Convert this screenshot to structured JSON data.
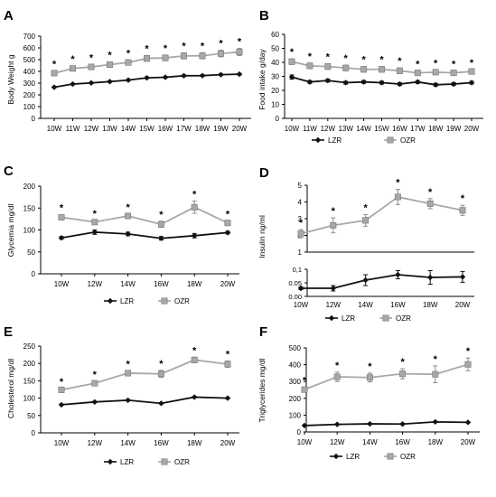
{
  "colors": {
    "lzr": "#111111",
    "ozr": "#a8a8a8",
    "ozr_err": "#8c8c8c",
    "axis": "#000000"
  },
  "chart_data": [
    {
      "type": "line",
      "panel_letter": "A",
      "ylabel": "Body Weight g",
      "xlabel": "",
      "categories": [
        "10W",
        "11W",
        "12W",
        "13W",
        "14W",
        "15W",
        "16W",
        "17W",
        "18W",
        "19W",
        "20W"
      ],
      "ylim": [
        0,
        700
      ],
      "yticks": [
        "0",
        "100",
        "200",
        "300",
        "400",
        "500",
        "600",
        "700"
      ],
      "series": [
        {
          "name": "LZR",
          "values": [
            265,
            292,
            302,
            313,
            326,
            345,
            350,
            363,
            364,
            372,
            376
          ],
          "errors": [
            6,
            6,
            6,
            6,
            6,
            7,
            7,
            7,
            7,
            7,
            7
          ]
        },
        {
          "name": "OZR",
          "values": [
            385,
            425,
            438,
            458,
            476,
            510,
            515,
            532,
            533,
            552,
            565
          ],
          "errors": [
            18,
            20,
            20,
            22,
            22,
            24,
            24,
            25,
            26,
            28,
            30
          ]
        }
      ],
      "annotations": [
        "*",
        "*",
        "*",
        "*",
        "*",
        "*",
        "*",
        "*",
        "*",
        "*",
        "*"
      ],
      "legend": {
        "show": false,
        "labels": []
      }
    },
    {
      "type": "line",
      "panel_letter": "B",
      "ylabel": "Food intake g/day",
      "xlabel": "",
      "categories": [
        "10W",
        "11W",
        "12W",
        "13W",
        "14W",
        "15W",
        "16W",
        "17W",
        "18W",
        "19W",
        "20W"
      ],
      "ylim": [
        0,
        60
      ],
      "yticks": [
        "0",
        "10",
        "20",
        "30",
        "40",
        "50",
        "60"
      ],
      "series": [
        {
          "name": "LZR",
          "values": [
            29.5,
            26,
            27,
            25.5,
            26,
            25.5,
            24.5,
            26,
            24,
            24.5,
            25.5
          ],
          "errors": [
            1.5,
            1,
            1,
            1,
            1,
            1,
            1,
            1,
            1,
            1,
            1
          ]
        },
        {
          "name": "OZR",
          "values": [
            40.5,
            37.5,
            37,
            36,
            35,
            35,
            34,
            32.5,
            33,
            32.5,
            33.5
          ],
          "errors": [
            2,
            2,
            2,
            2,
            2,
            2,
            2,
            1.5,
            1.5,
            1.5,
            1.5
          ]
        }
      ],
      "annotations": [
        "*",
        "*",
        "*",
        "*",
        "*",
        "*",
        "*",
        "*",
        "*",
        "*",
        "*"
      ],
      "legend": {
        "show": true,
        "labels": [
          "LZR",
          "OZR"
        ]
      }
    },
    {
      "type": "line",
      "panel_letter": "C",
      "ylabel": "Glycemia mg/dl",
      "xlabel": "",
      "categories": [
        "10W",
        "12W",
        "14W",
        "16W",
        "18W",
        "20W"
      ],
      "ylim": [
        0,
        200
      ],
      "yticks": [
        "0",
        "50",
        "100",
        "150",
        "200"
      ],
      "series": [
        {
          "name": "LZR",
          "values": [
            82,
            95,
            91,
            81,
            87,
            94
          ],
          "errors": [
            3,
            5,
            4,
            4,
            5,
            3
          ]
        },
        {
          "name": "OZR",
          "values": [
            129,
            118,
            132,
            113,
            152,
            116
          ],
          "errors": [
            6,
            4,
            4,
            7,
            14,
            5
          ]
        }
      ],
      "annotations": [
        "*",
        "*",
        "*",
        "*",
        "*",
        "*"
      ],
      "legend": {
        "show": true,
        "labels": [
          "LZR",
          "OZR"
        ]
      }
    },
    {
      "type": "line",
      "panel_letter": "D",
      "ylabel": "Insulin ng/ml",
      "xlabel": "",
      "categories": [
        "10W",
        "12W",
        "14W",
        "16W",
        "18W",
        "20W"
      ],
      "upper": {
        "ylim": [
          1,
          5
        ],
        "yticks": [
          "1",
          "2",
          "3",
          "4",
          "5"
        ],
        "series": [
          {
            "name": "OZR",
            "values": [
              2.1,
              2.6,
              2.9,
              4.3,
              3.9,
              3.5
            ],
            "errors": [
              0.25,
              0.45,
              0.35,
              0.45,
              0.3,
              0.3
            ]
          }
        ]
      },
      "lower": {
        "ylim": [
          0,
          0.1
        ],
        "yticks": [
          "0.00",
          "0.05",
          "0,1"
        ],
        "series": [
          {
            "name": "LZR",
            "values": [
              0.03,
              0.03,
              0.06,
              0.08,
              0.07,
              0.072
            ],
            "errors": [
              0.005,
              0.01,
              0.02,
              0.015,
              0.025,
              0.02
            ]
          }
        ]
      },
      "annotations": [
        "*",
        "*",
        "*",
        "*",
        "*",
        "*"
      ],
      "legend": {
        "show": true,
        "labels": [
          "LZR",
          "OZR"
        ]
      }
    },
    {
      "type": "line",
      "panel_letter": "E",
      "ylabel": "Cholesterol mg/dl",
      "xlabel": "",
      "categories": [
        "10W",
        "12W",
        "14W",
        "16W",
        "18W",
        "20W"
      ],
      "ylim": [
        0,
        250
      ],
      "yticks": [
        "0",
        "50",
        "100",
        "150",
        "200",
        "250"
      ],
      "series": [
        {
          "name": "LZR",
          "values": [
            81,
            89,
            94,
            85,
            103,
            100
          ],
          "errors": [
            2,
            2,
            2,
            2,
            2,
            2
          ]
        },
        {
          "name": "OZR",
          "values": [
            124,
            143,
            172,
            170,
            210,
            198
          ],
          "errors": [
            4,
            5,
            6,
            10,
            8,
            9
          ]
        }
      ],
      "annotations": [
        "*",
        "*",
        "*",
        "*",
        "*",
        "*"
      ],
      "legend": {
        "show": true,
        "labels": [
          "LZR",
          "OZR"
        ]
      }
    },
    {
      "type": "line",
      "panel_letter": "F",
      "ylabel": "Triglycerides mg/dl",
      "xlabel": "",
      "categories": [
        "10W",
        "12W",
        "14W",
        "16W",
        "18W",
        "20W"
      ],
      "ylim": [
        0,
        500
      ],
      "yticks": [
        "0",
        "100",
        "200",
        "300",
        "400",
        "500"
      ],
      "series": [
        {
          "name": "LZR",
          "values": [
            38,
            45,
            48,
            47,
            60,
            57
          ],
          "errors": [
            3,
            3,
            3,
            3,
            3,
            3
          ]
        },
        {
          "name": "OZR",
          "values": [
            252,
            328,
            324,
            346,
            343,
            402
          ],
          "errors": [
            14,
            28,
            26,
            30,
            50,
            38
          ]
        }
      ],
      "annotations": [
        "*",
        "*",
        "*",
        "*",
        "*",
        "*"
      ],
      "legend": {
        "show": true,
        "labels": [
          "LZR",
          "OZR"
        ]
      }
    }
  ]
}
